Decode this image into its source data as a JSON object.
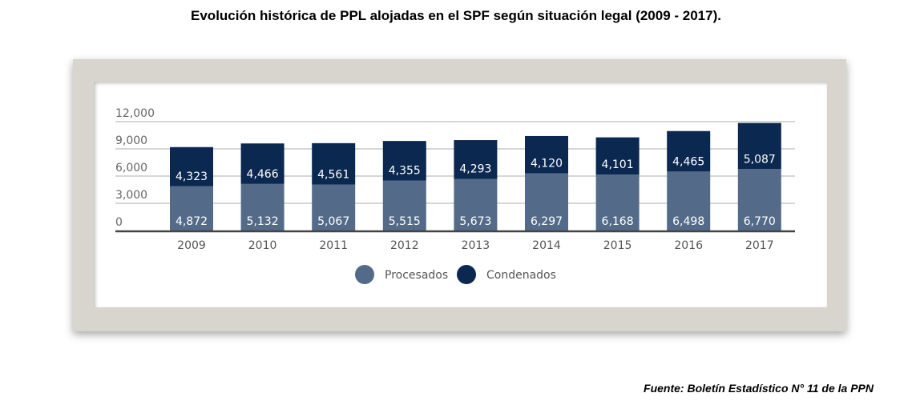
{
  "title": "Evolución histórica de PPL alojadas en el SPF según situación legal  (2009 - 2017).",
  "source": "Fuente: Boletín Estadístico N° 11 de la PPN",
  "chart_data": {
    "type": "bar",
    "stacked": true,
    "categories": [
      "2009",
      "2010",
      "2011",
      "2012",
      "2013",
      "2014",
      "2015",
      "2016",
      "2017"
    ],
    "series": [
      {
        "name": "Procesados",
        "color": "#536b89",
        "values": [
          4872,
          5132,
          5067,
          5515,
          5673,
          6297,
          6168,
          6498,
          6770
        ],
        "labels": [
          "4,872",
          "5,132",
          "5,067",
          "5,515",
          "5,673",
          "6,297",
          "6,168",
          "6,498",
          "6,770"
        ]
      },
      {
        "name": "Condenados",
        "color": "#0b2850",
        "values": [
          4323,
          4466,
          4561,
          4355,
          4293,
          4120,
          4101,
          4465,
          5087
        ],
        "labels": [
          "4,323",
          "4,466",
          "4,561",
          "4,355",
          "4,293",
          "4,120",
          "4,101",
          "4,465",
          "5,087"
        ]
      }
    ],
    "yticks": [
      0,
      3000,
      6000,
      9000,
      12000
    ],
    "ytick_labels": [
      "0",
      "3,000",
      "6,000",
      "9,000",
      "12,000"
    ],
    "ylim": [
      0,
      12000
    ],
    "grid": true,
    "legend_position": "bottom"
  }
}
